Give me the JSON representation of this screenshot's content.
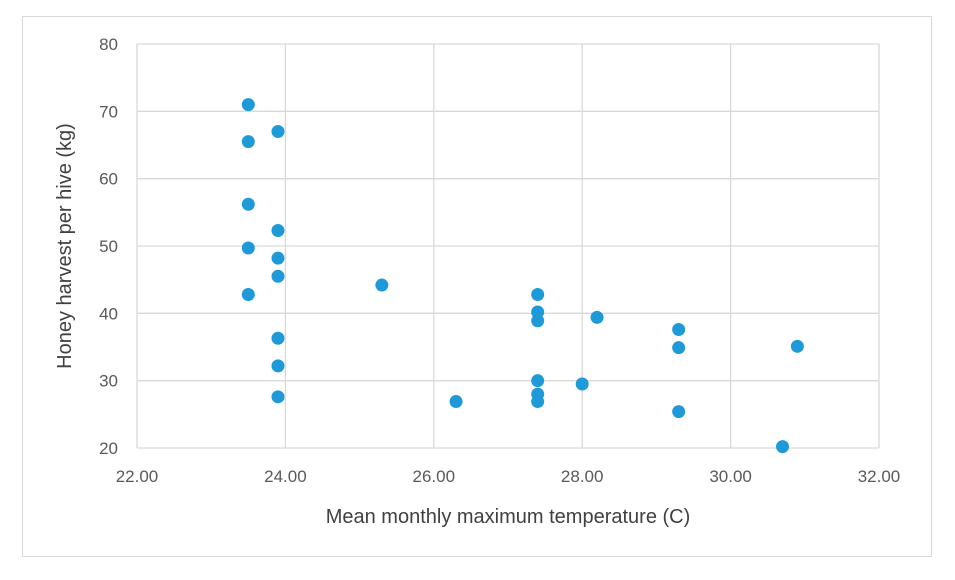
{
  "chart_data": {
    "type": "scatter",
    "title": "",
    "xlabel": "Mean monthly maximum temperature (C)",
    "ylabel": "Honey harvest per hive (kg)",
    "xlim": [
      22,
      32
    ],
    "ylim": [
      20,
      80
    ],
    "x_ticks": [
      "22.00",
      "24.00",
      "26.00",
      "28.00",
      "30.00",
      "32.00"
    ],
    "y_ticks": [
      "20",
      "30",
      "40",
      "50",
      "60",
      "70",
      "80"
    ],
    "x_tick_values": [
      22,
      24,
      26,
      28,
      30,
      32
    ],
    "y_tick_values": [
      20,
      30,
      40,
      50,
      60,
      70,
      80
    ],
    "grid": true,
    "legend": "none",
    "marker_color": "#1f9ad9",
    "series": [
      {
        "points": [
          {
            "x": 23.5,
            "y": 71.0
          },
          {
            "x": 23.5,
            "y": 65.5
          },
          {
            "x": 23.5,
            "y": 56.2
          },
          {
            "x": 23.5,
            "y": 49.7
          },
          {
            "x": 23.5,
            "y": 42.8
          },
          {
            "x": 23.9,
            "y": 67.0
          },
          {
            "x": 23.9,
            "y": 52.3
          },
          {
            "x": 23.9,
            "y": 48.2
          },
          {
            "x": 23.9,
            "y": 45.5
          },
          {
            "x": 23.9,
            "y": 36.3
          },
          {
            "x": 23.9,
            "y": 32.2
          },
          {
            "x": 23.9,
            "y": 27.6
          },
          {
            "x": 25.3,
            "y": 44.2
          },
          {
            "x": 26.3,
            "y": 26.9
          },
          {
            "x": 27.4,
            "y": 42.8
          },
          {
            "x": 27.4,
            "y": 40.2
          },
          {
            "x": 27.4,
            "y": 38.9
          },
          {
            "x": 27.4,
            "y": 30.0
          },
          {
            "x": 27.4,
            "y": 28.0
          },
          {
            "x": 27.4,
            "y": 26.9
          },
          {
            "x": 28.0,
            "y": 29.5
          },
          {
            "x": 28.2,
            "y": 39.4
          },
          {
            "x": 29.3,
            "y": 37.6
          },
          {
            "x": 29.3,
            "y": 34.9
          },
          {
            "x": 29.3,
            "y": 25.4
          },
          {
            "x": 30.7,
            "y": 20.2
          },
          {
            "x": 30.9,
            "y": 35.1
          }
        ]
      }
    ]
  }
}
